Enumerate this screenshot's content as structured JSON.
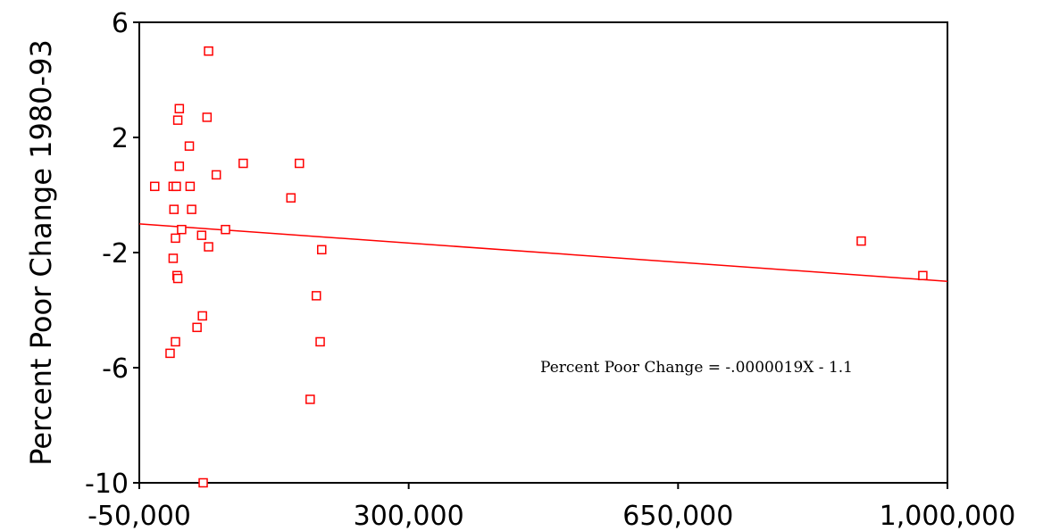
{
  "chart_data": {
    "type": "scatter",
    "title": "",
    "xlabel": "",
    "ylabel": "Percent Poor Change 1980-93",
    "xlim": [
      -50000,
      1000000
    ],
    "ylim": [
      -10,
      6
    ],
    "x_ticks": [
      -50000,
      300000,
      650000,
      1000000
    ],
    "x_tick_labels": [
      "-50,000",
      "300,000",
      "650,000",
      "1,000,000"
    ],
    "y_ticks": [
      6,
      2,
      -2,
      -6,
      -10
    ],
    "y_tick_labels": [
      "6",
      "2",
      "-2",
      "-6",
      "-10"
    ],
    "grid": false,
    "marker": "open-square",
    "color": "#ff0000",
    "points": [
      {
        "x": -30000,
        "y": 0.3
      },
      {
        "x": -6000,
        "y": 0.3
      },
      {
        "x": -2000,
        "y": 0.3
      },
      {
        "x": 16000,
        "y": 0.3
      },
      {
        "x": -5000,
        "y": -0.5
      },
      {
        "x": 18000,
        "y": -0.5
      },
      {
        "x": 0,
        "y": 2.6
      },
      {
        "x": 2000,
        "y": 3.0
      },
      {
        "x": 2000,
        "y": 1.0
      },
      {
        "x": 15000,
        "y": 1.7
      },
      {
        "x": 40000,
        "y": 5.0
      },
      {
        "x": 38000,
        "y": 2.7
      },
      {
        "x": 50000,
        "y": 0.7
      },
      {
        "x": 85000,
        "y": 1.1
      },
      {
        "x": 147000,
        "y": -0.1
      },
      {
        "x": 158000,
        "y": 1.1
      },
      {
        "x": 5000,
        "y": -1.2
      },
      {
        "x": -3000,
        "y": -1.5
      },
      {
        "x": 31000,
        "y": -1.4
      },
      {
        "x": 40000,
        "y": -1.8
      },
      {
        "x": 62000,
        "y": -1.2
      },
      {
        "x": -6000,
        "y": -2.2
      },
      {
        "x": -1000,
        "y": -2.8
      },
      {
        "x": 0,
        "y": -2.9
      },
      {
        "x": 187000,
        "y": -1.9
      },
      {
        "x": 180000,
        "y": -3.5
      },
      {
        "x": 185000,
        "y": -5.1
      },
      {
        "x": 172000,
        "y": -7.1
      },
      {
        "x": 32000,
        "y": -4.2
      },
      {
        "x": 25000,
        "y": -4.6
      },
      {
        "x": -3000,
        "y": -5.1
      },
      {
        "x": -10000,
        "y": -5.5
      },
      {
        "x": 33000,
        "y": -10.0
      },
      {
        "x": 888000,
        "y": -1.6
      },
      {
        "x": 968000,
        "y": -2.8
      }
    ],
    "regression": {
      "slope": -1.9e-06,
      "intercept": -1.1,
      "x_range": [
        -50000,
        1000000
      ],
      "equation_label": "Percent Poor Change = -.0000019X - 1.1"
    }
  }
}
